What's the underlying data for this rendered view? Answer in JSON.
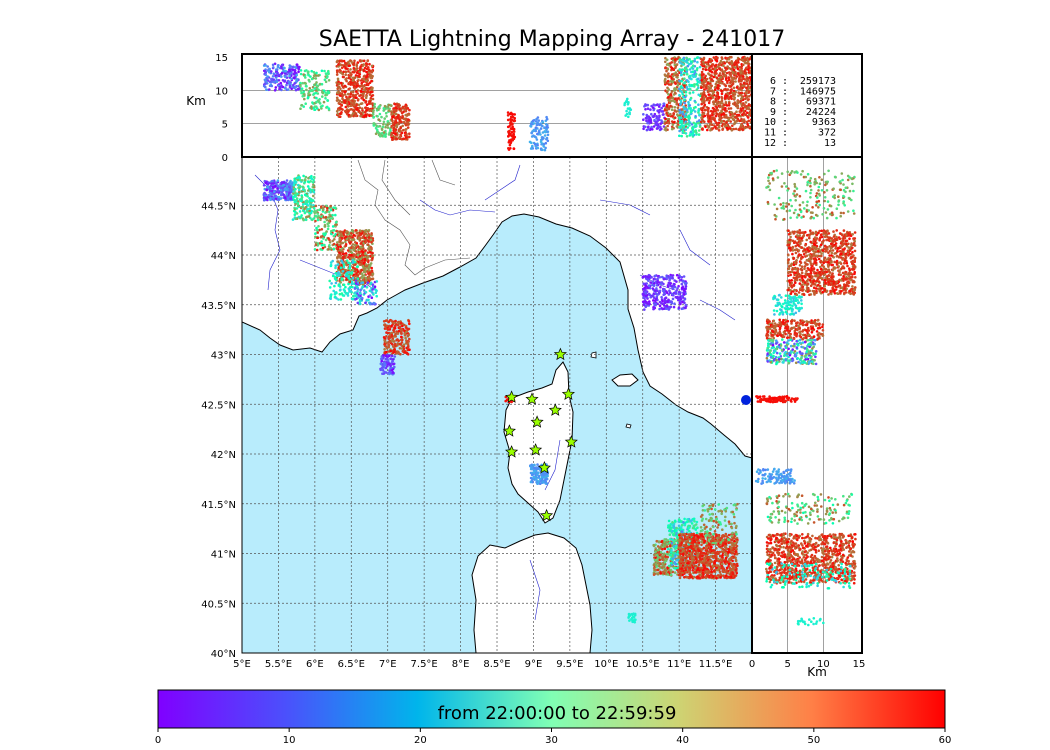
{
  "chart_data": {
    "type": "scatter",
    "title": "SAETTA Lightning Mapping Array - 241017",
    "map": {
      "lon_range": [
        5,
        11.5
      ],
      "lat_range": [
        40,
        45
      ],
      "lon_ticks": [
        "5°E",
        "5.5°E",
        "6°E",
        "6.5°E",
        "7°E",
        "7.5°E",
        "8°E",
        "8.5°E",
        "9°E",
        "9.5°E",
        "10°E",
        "10.5°E",
        "11°E",
        "11.5°E"
      ],
      "lat_ticks": [
        "40°N",
        "40.5°N",
        "41°N",
        "41.5°N",
        "42°N",
        "42.5°N",
        "43°N",
        "43.5°N",
        "44°N",
        "44.5°N"
      ],
      "grid": true
    },
    "altitude_axis": {
      "unit": "Km",
      "ylim": [
        0,
        15
      ],
      "ticks": [
        "0",
        "5",
        "10",
        "15"
      ]
    },
    "side_panel": {
      "unit": "Km",
      "xlim": [
        0,
        15
      ],
      "ticks": [
        "0",
        "5",
        "10",
        "15"
      ]
    },
    "station_counts": [
      {
        "stations": "6",
        "count": "259173",
        "color": "#000000"
      },
      {
        "stations": "7",
        "count": "146975",
        "color": "#ff0000"
      },
      {
        "stations": "8",
        "count": "69371",
        "color": "#000000"
      },
      {
        "stations": "9",
        "count": "24224",
        "color": "#000000"
      },
      {
        "stations": "10",
        "count": "9363",
        "color": "#000000"
      },
      {
        "stations": "11",
        "count": "372",
        "color": "#000000"
      },
      {
        "stations": "12",
        "count": "13",
        "color": "#000000"
      }
    ],
    "colorbar": {
      "label": "from 22:00:00 to 22:59:59",
      "range": [
        0,
        60
      ],
      "ticks": [
        "0",
        "10",
        "20",
        "30",
        "40",
        "50",
        "60"
      ],
      "colormap": "rainbow"
    },
    "stations": [
      [
        8.7,
        42.57
      ],
      [
        8.98,
        42.55
      ],
      [
        9.37,
        43.0
      ],
      [
        9.48,
        42.6
      ],
      [
        9.3,
        42.44
      ],
      [
        9.05,
        42.32
      ],
      [
        8.67,
        42.23
      ],
      [
        9.52,
        42.12
      ],
      [
        8.7,
        42.02
      ],
      [
        9.03,
        42.04
      ],
      [
        9.15,
        41.86
      ],
      [
        9.18,
        41.38
      ]
    ],
    "clusters": [
      {
        "lon": [
          5.3,
          5.7
        ],
        "lat": [
          44.55,
          44.75
        ],
        "min": 0,
        "max": 15,
        "n": 260
      },
      {
        "lon": [
          5.7,
          6.0
        ],
        "lat": [
          44.35,
          44.8
        ],
        "min": 20,
        "max": 50,
        "n": 200
      },
      {
        "lon": [
          6.0,
          6.3
        ],
        "lat": [
          44.05,
          44.5
        ],
        "min": 30,
        "max": 60,
        "n": 150
      },
      {
        "lon": [
          6.3,
          6.8
        ],
        "lat": [
          43.7,
          44.25
        ],
        "min": 45,
        "max": 60,
        "n": 600
      },
      {
        "lon": [
          6.2,
          6.6
        ],
        "lat": [
          43.55,
          43.95
        ],
        "min": 15,
        "max": 35,
        "n": 120
      },
      {
        "lon": [
          6.55,
          6.85
        ],
        "lat": [
          43.5,
          43.75
        ],
        "min": 0,
        "max": 25,
        "n": 80
      },
      {
        "lon": [
          6.95,
          7.3
        ],
        "lat": [
          43.0,
          43.35
        ],
        "min": 50,
        "max": 60,
        "n": 200
      },
      {
        "lon": [
          6.9,
          7.1
        ],
        "lat": [
          42.8,
          43.0
        ],
        "min": 0,
        "max": 10,
        "n": 80
      },
      {
        "lon": [
          10.5,
          11.1
        ],
        "lat": [
          43.45,
          43.8
        ],
        "min": 0,
        "max": 8,
        "n": 320
      },
      {
        "lon": [
          8.95,
          9.2
        ],
        "lat": [
          41.7,
          41.9
        ],
        "min": 10,
        "max": 15,
        "n": 140
      },
      {
        "lon": [
          10.65,
          11.0
        ],
        "lat": [
          40.78,
          41.15
        ],
        "min": 40,
        "max": 60,
        "n": 250
      },
      {
        "lon": [
          10.85,
          11.25
        ],
        "lat": [
          40.85,
          41.35
        ],
        "min": 10,
        "max": 40,
        "n": 250
      },
      {
        "lon": [
          11.0,
          11.8
        ],
        "lat": [
          40.75,
          41.2
        ],
        "min": 50,
        "max": 60,
        "n": 900
      },
      {
        "lon": [
          11.3,
          11.8
        ],
        "lat": [
          41.1,
          41.5
        ],
        "min": 35,
        "max": 55,
        "n": 120
      },
      {
        "lon": [
          10.3,
          10.4
        ],
        "lat": [
          40.3,
          40.4
        ],
        "min": 22,
        "max": 26,
        "n": 20
      },
      {
        "lon": [
          8.6,
          8.75
        ],
        "lat": [
          42.52,
          42.6
        ],
        "min": 58,
        "max": 60,
        "n": 20
      }
    ],
    "altitude_clusters": [
      {
        "lon": [
          5.3,
          5.8
        ],
        "alt": [
          10,
          14
        ],
        "min": 0,
        "max": 15,
        "n": 200
      },
      {
        "lon": [
          5.8,
          6.2
        ],
        "alt": [
          7,
          13
        ],
        "min": 30,
        "max": 50,
        "n": 150
      },
      {
        "lon": [
          6.3,
          6.8
        ],
        "alt": [
          6,
          14.5
        ],
        "min": 50,
        "max": 60,
        "n": 500
      },
      {
        "lon": [
          6.8,
          7.05
        ],
        "alt": [
          3,
          8
        ],
        "min": 35,
        "max": 50,
        "n": 100
      },
      {
        "lon": [
          7.05,
          7.3
        ],
        "alt": [
          2.5,
          8
        ],
        "min": 50,
        "max": 60,
        "n": 200
      },
      {
        "lon": [
          8.65,
          8.75
        ],
        "alt": [
          1,
          7
        ],
        "min": 58,
        "max": 60,
        "n": 70
      },
      {
        "lon": [
          8.95,
          9.2
        ],
        "alt": [
          1,
          6
        ],
        "min": 10,
        "max": 15,
        "n": 100
      },
      {
        "lon": [
          10.25,
          10.35
        ],
        "alt": [
          6,
          9
        ],
        "min": 22,
        "max": 25,
        "n": 20
      },
      {
        "lon": [
          10.5,
          10.8
        ],
        "alt": [
          4,
          8
        ],
        "min": 0,
        "max": 8,
        "n": 100
      },
      {
        "lon": [
          10.8,
          11.1
        ],
        "alt": [
          4,
          15
        ],
        "min": 45,
        "max": 60,
        "n": 300
      },
      {
        "lon": [
          11.0,
          11.3
        ],
        "alt": [
          3,
          15
        ],
        "min": 10,
        "max": 40,
        "n": 250
      },
      {
        "lon": [
          11.3,
          12.0
        ],
        "alt": [
          4,
          15
        ],
        "min": 50,
        "max": 60,
        "n": 900
      }
    ],
    "side_clusters": [
      {
        "alt": [
          2,
          14.5
        ],
        "lat": [
          44.35,
          44.85
        ],
        "min": 35,
        "max": 55,
        "n": 200
      },
      {
        "alt": [
          5,
          14.5
        ],
        "lat": [
          43.6,
          44.25
        ],
        "min": 50,
        "max": 60,
        "n": 900
      },
      {
        "alt": [
          3,
          7
        ],
        "lat": [
          43.4,
          43.6
        ],
        "min": 15,
        "max": 30,
        "n": 100
      },
      {
        "alt": [
          2,
          10
        ],
        "lat": [
          43.15,
          43.35
        ],
        "min": 50,
        "max": 60,
        "n": 250
      },
      {
        "alt": [
          2,
          9
        ],
        "lat": [
          42.9,
          43.15
        ],
        "min": 0,
        "max": 50,
        "n": 250
      },
      {
        "alt": [
          0.5,
          6.5
        ],
        "lat": [
          42.52,
          42.58
        ],
        "min": 58,
        "max": 60,
        "n": 100
      },
      {
        "alt": [
          0.5,
          6
        ],
        "lat": [
          41.7,
          41.85
        ],
        "min": 10,
        "max": 15,
        "n": 100
      },
      {
        "alt": [
          2,
          14
        ],
        "lat": [
          41.3,
          41.6
        ],
        "min": 30,
        "max": 55,
        "n": 150
      },
      {
        "alt": [
          2,
          14.5
        ],
        "lat": [
          40.7,
          41.2
        ],
        "min": 50,
        "max": 60,
        "n": 900
      },
      {
        "alt": [
          2,
          14
        ],
        "lat": [
          40.65,
          40.9
        ],
        "min": 15,
        "max": 35,
        "n": 120
      },
      {
        "alt": [
          6,
          10
        ],
        "lat": [
          40.28,
          40.35
        ],
        "min": 22,
        "max": 26,
        "n": 20
      }
    ]
  }
}
